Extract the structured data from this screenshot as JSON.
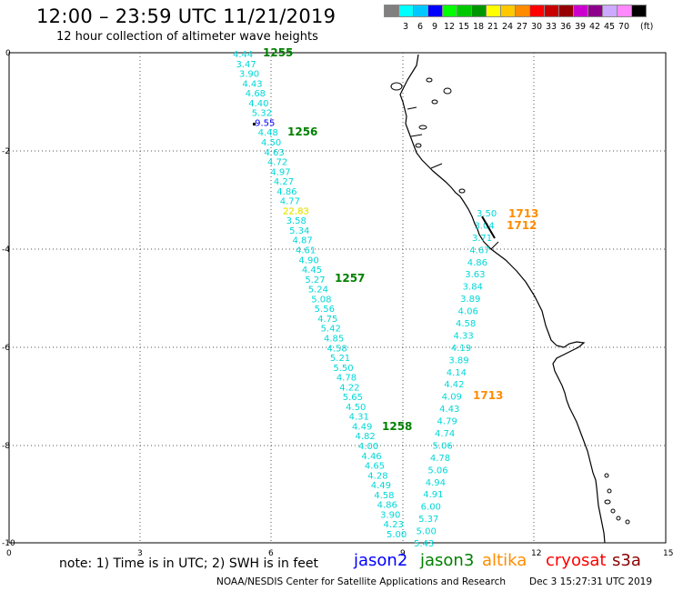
{
  "header": {
    "title": "12:00 – 23:59 UTC 11/21/2019",
    "subtitle": "12 hour collection of altimeter wave heights"
  },
  "colorbar": {
    "colors": [
      "#808080",
      "#00ffff",
      "#00c8ff",
      "#0000ff",
      "#00ff00",
      "#00c800",
      "#009600",
      "#ffff00",
      "#ffc800",
      "#ff8c00",
      "#ff0000",
      "#c80000",
      "#960000",
      "#cc00cc",
      "#8c008c",
      "#ccaaff",
      "#ff88ff",
      "#000000"
    ],
    "labels": [
      "3",
      "6",
      "9",
      "12",
      "15",
      "18",
      "21",
      "24",
      "27",
      "30",
      "33",
      "36",
      "39",
      "42",
      "45",
      "70"
    ],
    "unit": "(ft)"
  },
  "map": {
    "y_axis_labels": [
      "0",
      "-2",
      "-4",
      "-6",
      "-8",
      "-10"
    ],
    "x_axis_labels": [
      "0",
      "3",
      "6",
      "9",
      "12",
      "15"
    ],
    "pass_labels": [
      {
        "text": "1255",
        "color": "#008000"
      },
      {
        "text": "1256",
        "color": "#008000"
      },
      {
        "text": "1257",
        "color": "#008000"
      },
      {
        "text": "1258",
        "color": "#008000"
      },
      {
        "text": "1713",
        "color": "#ff8c00"
      },
      {
        "text": "1712",
        "color": "#ff8c00"
      },
      {
        "text": "1713",
        "color": "#ff8c00"
      }
    ],
    "track_a": [
      "4.44",
      "3.47",
      "3.90",
      "4.43",
      "4.68",
      "4.40",
      "5.32",
      "9.55",
      "4.48",
      "4.50",
      "4.63",
      "4.72",
      "4.97",
      "4.27",
      "4.86",
      "4.77",
      "22.83",
      "3.58",
      "5.34",
      "4.87",
      "4.61",
      "4.90",
      "4.45",
      "5.27",
      "5.24",
      "5.08",
      "5.56",
      "4.75",
      "5.42",
      "4.85",
      "4.58",
      "5.21",
      "5.50",
      "4.78",
      "4.22",
      "5.65",
      "4.50",
      "4.31",
      "4.49",
      "4.82",
      "4.00",
      "4.46",
      "4.65",
      "4.28",
      "4.49",
      "4.58",
      "4.86",
      "3.90",
      "4.23",
      "5.00"
    ],
    "track_b": [
      "3.50",
      "3.04",
      "3.71",
      "4.67",
      "4.86",
      "3.63",
      "3.84",
      "3.89",
      "4.06",
      "4.58",
      "4.33",
      "4.19",
      "3.89",
      "4.14",
      "4.42",
      "4.09",
      "4.43",
      "4.79",
      "4.74",
      "5.06",
      "4.78",
      "5.06",
      "4.94",
      "4.91",
      "6.00",
      "5.37",
      "5.00",
      "5.43"
    ]
  },
  "footer": {
    "note": "note: 1) Time is in UTC; 2) SWH is in feet",
    "legend": [
      {
        "text": "jason2",
        "color": "#0000ff"
      },
      {
        "text": "jason3",
        "color": "#008000"
      },
      {
        "text": "altika",
        "color": "#ff8c00"
      },
      {
        "text": "cryosat",
        "color": "#ff0000"
      },
      {
        "text": "s3a",
        "color": "#8b0000"
      }
    ],
    "credit": "NOAA/NESDIS Center for Satellite Applications and Research",
    "date": "Dec  3 15:27:31 UTC 2019"
  }
}
